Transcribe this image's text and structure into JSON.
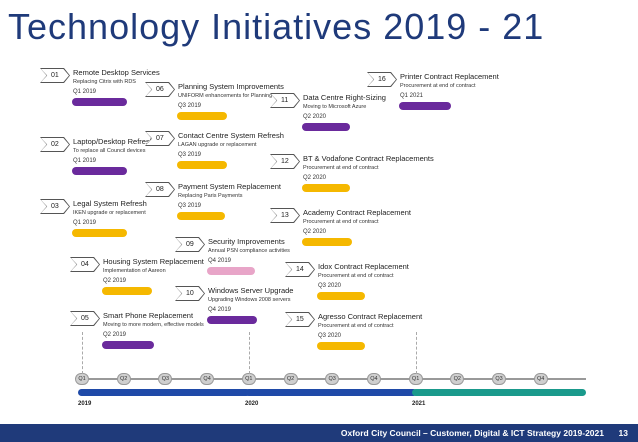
{
  "title": "Technology Initiatives 2019 - 21",
  "colors": {
    "purple": "#6a2a9c",
    "yellow": "#f5b800",
    "pink": "#e8a5c8",
    "navy": "#1f3a7a",
    "blue": "#1f4aa8",
    "teal": "#1a9a8c"
  },
  "items": [
    {
      "num": "01",
      "title": "Remote Desktop Services",
      "desc": "Replacing Citrix with RDS",
      "date": "Q1 2019",
      "color": "purple"
    },
    {
      "num": "02",
      "title": "Laptop/Desktop Refresh",
      "desc": "To replace all Council devices",
      "date": "Q1 2019",
      "color": "purple"
    },
    {
      "num": "03",
      "title": "Legal System Refresh",
      "desc": "IKEN upgrade or replacement",
      "date": "Q1 2019",
      "color": "yellow"
    },
    {
      "num": "04",
      "title": "Housing System Replacement",
      "desc": "Implementation of Aareon",
      "date": "Q2 2019",
      "color": "yellow"
    },
    {
      "num": "05",
      "title": "Smart Phone Replacement",
      "desc": "Moving to more modern, effective models",
      "date": "Q2 2019",
      "color": "purple"
    },
    {
      "num": "06",
      "title": "Planning System Improvements",
      "desc": "UNIFORM enhancements for Planning",
      "date": "Q3 2019",
      "color": "yellow"
    },
    {
      "num": "07",
      "title": "Contact Centre System Refresh",
      "desc": "LAGAN upgrade or replacement",
      "date": "Q3 2019",
      "color": "yellow"
    },
    {
      "num": "08",
      "title": "Payment System Replacement",
      "desc": "Replacing Paris Payments",
      "date": "Q3 2019",
      "color": "yellow"
    },
    {
      "num": "09",
      "title": "Security Improvements",
      "desc": "Annual PSN compliance activities",
      "date": "Q4 2019",
      "color": "pink"
    },
    {
      "num": "10",
      "title": "Windows Server Upgrade",
      "desc": "Upgrading Windows 2008 servers",
      "date": "Q4 2019",
      "color": "purple"
    },
    {
      "num": "11",
      "title": "Data Centre Right-Sizing",
      "desc": "Moving to Microsoft Azure",
      "date": "Q2 2020",
      "color": "purple"
    },
    {
      "num": "12",
      "title": "BT & Vodafone Contract Replacements",
      "desc": "Procurement at end of contract",
      "date": "Q2 2020",
      "color": "yellow"
    },
    {
      "num": "13",
      "title": "Academy Contract Replacement",
      "desc": "Procurement at end of contract",
      "date": "Q2 2020",
      "color": "yellow"
    },
    {
      "num": "14",
      "title": "Idox Contract Replacement",
      "desc": "Procurement at end of contract",
      "date": "Q3 2020",
      "color": "yellow"
    },
    {
      "num": "15",
      "title": "Agresso Contract Replacement",
      "desc": "Procurement at end of contract",
      "date": "Q3 2020",
      "color": "yellow"
    },
    {
      "num": "16",
      "title": "Printer Contract Replacement",
      "desc": "Procurement at end of contract",
      "date": "Q1 2021",
      "color": "purple"
    }
  ],
  "timeline": {
    "quarters": [
      "Q1",
      "Q2",
      "Q3",
      "Q4",
      "Q1",
      "Q2",
      "Q3",
      "Q4",
      "Q1",
      "Q2",
      "Q3",
      "Q4"
    ],
    "years": [
      "2019",
      "2020",
      "2021"
    ]
  },
  "footer": {
    "text": "Oxford City Council – Customer, Digital & ICT Strategy 2019-2021",
    "page": "13"
  }
}
